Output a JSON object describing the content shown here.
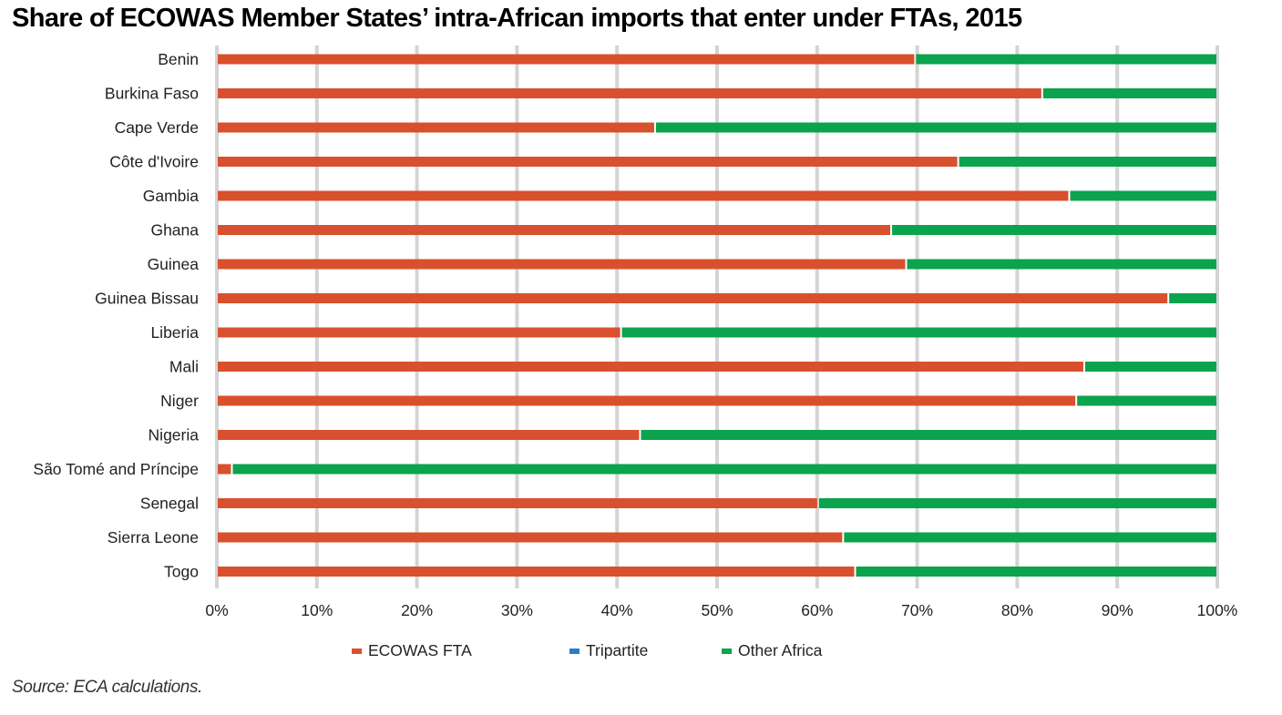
{
  "title": "Share of ECOWAS Member States’ intra-African imports that enter under FTAs, 2015",
  "source": "Source: ECA calculations.",
  "chart_data": {
    "type": "bar",
    "orientation": "horizontal",
    "stacked": true,
    "percent_stacked": true,
    "title": "Share of ECOWAS Member States’ intra-African imports that enter under FTAs, 2015",
    "xlabel": "",
    "ylabel": "",
    "xlim": [
      0,
      100
    ],
    "x_ticks": [
      "0%",
      "10%",
      "20%",
      "30%",
      "40%",
      "50%",
      "60%",
      "70%",
      "80%",
      "90%",
      "100%"
    ],
    "grid": "vertical",
    "legend_position": "bottom",
    "categories": [
      "Benin",
      "Burkina Faso",
      "Cape Verde",
      "Côte d'Ivoire",
      "Gambia",
      "Ghana",
      "Guinea",
      "Guinea Bissau",
      "Liberia",
      "Mali",
      "Niger",
      "Nigeria",
      "São Tomé and Príncipe",
      "Senegal",
      "Sierra Leone",
      "Togo"
    ],
    "series": [
      {
        "name": "ECOWAS FTA",
        "color": "#d9502e",
        "values": [
          69.8,
          82.5,
          43.8,
          74.1,
          85.2,
          67.4,
          68.9,
          95.1,
          40.4,
          86.7,
          85.9,
          42.3,
          1.5,
          60.1,
          62.6,
          63.8
        ]
      },
      {
        "name": "Tripartite",
        "color": "#2b7cc4",
        "values": [
          0,
          0,
          0,
          0,
          0,
          0,
          0,
          0,
          0,
          0,
          0,
          0,
          0,
          0,
          0,
          0
        ]
      },
      {
        "name": "Other Africa",
        "color": "#0ba34d",
        "values": [
          30.2,
          17.5,
          56.2,
          25.9,
          14.8,
          32.6,
          31.1,
          4.9,
          59.6,
          13.3,
          14.1,
          57.7,
          98.5,
          39.9,
          37.4,
          36.2
        ]
      }
    ]
  }
}
